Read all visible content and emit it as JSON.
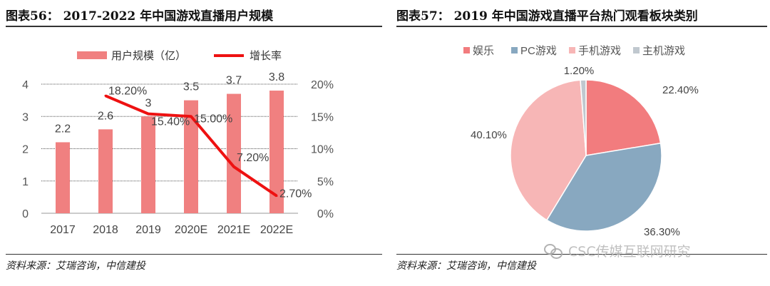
{
  "left": {
    "title": "图表56：  2017-2022 年中国游戏直播用户规模",
    "source": "资料来源：艾瑞咨询，中信建投"
  },
  "right": {
    "title": "图表57：  2019 年中国游戏直播平台热门观看板块类别",
    "source": "资料来源：艾瑞咨询，中信建投"
  },
  "watermark": "CSC传媒互联网研究",
  "chart_data": [
    {
      "type": "bar+line",
      "title": "2017-2022 年中国游戏直播用户规模",
      "categories": [
        "2017",
        "2018",
        "2019",
        "2020E",
        "2021E",
        "2022E"
      ],
      "series": [
        {
          "name": "用户规模（亿）",
          "type": "bar",
          "axis": "left",
          "values": [
            2.2,
            2.6,
            3,
            3.5,
            3.7,
            3.8
          ],
          "labels": [
            "2.2",
            "2.6",
            "3",
            "3.5",
            "3.7",
            "3.8"
          ],
          "color": "#f08080"
        },
        {
          "name": "增长率",
          "type": "line",
          "axis": "right",
          "values": [
            null,
            18.2,
            15.4,
            15.0,
            7.2,
            2.7
          ],
          "labels": [
            "",
            "18.20%",
            "15.40%",
            "15.00%",
            "7.20%",
            "2.70%"
          ],
          "color": "#ee1111"
        }
      ],
      "y_left": {
        "min": 0,
        "max": 4,
        "ticks": [
          "0",
          "1",
          "2",
          "3",
          "4"
        ]
      },
      "y_right": {
        "min": 0,
        "max": 20,
        "ticks": [
          "0%",
          "5%",
          "10%",
          "15%",
          "20%"
        ]
      },
      "legend_position": "top"
    },
    {
      "type": "pie",
      "title": "2019 年中国游戏直播平台热门观看板块类别",
      "slices": [
        {
          "name": "娱乐",
          "value": 22.4,
          "label": "22.40%",
          "color": "#f27c7e"
        },
        {
          "name": "PC游戏",
          "value": 36.3,
          "label": "36.30%",
          "color": "#88a8c0"
        },
        {
          "name": "手机游戏",
          "value": 40.1,
          "label": "40.10%",
          "color": "#f7b6b6"
        },
        {
          "name": "主机游戏",
          "value": 1.2,
          "label": "1.20%",
          "color": "#c0c8cf"
        }
      ],
      "legend_position": "top"
    }
  ]
}
